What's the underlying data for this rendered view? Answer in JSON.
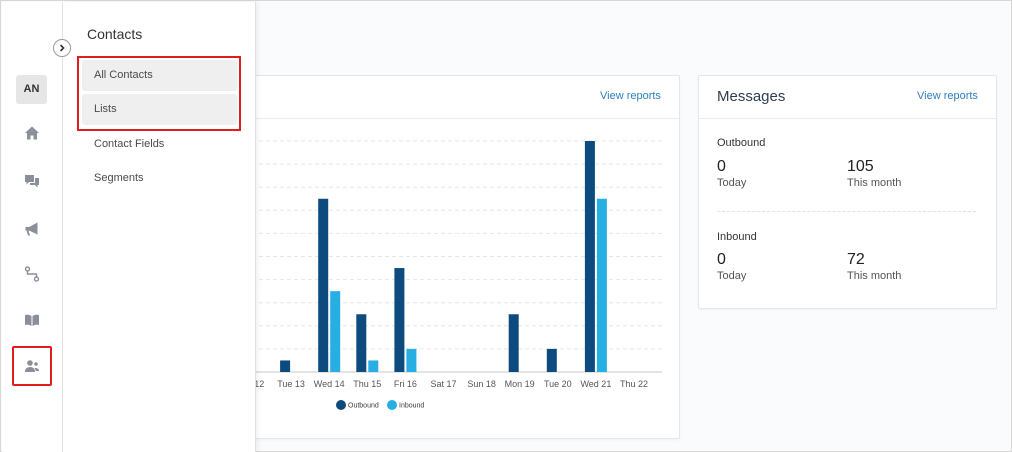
{
  "rail": {
    "avatar_initials": "AN",
    "icons": [
      "home-icon",
      "chat-icon",
      "megaphone-icon",
      "flow-icon",
      "book-icon",
      "contacts-icon"
    ]
  },
  "flyout": {
    "title": "Contacts",
    "items": [
      {
        "label": "All Contacts"
      },
      {
        "label": "Lists"
      },
      {
        "label": "Contact Fields"
      },
      {
        "label": "Segments"
      }
    ]
  },
  "chart_card": {
    "view_reports": "View reports"
  },
  "messages_card": {
    "title": "Messages",
    "view_reports": "View reports",
    "outbound": {
      "label": "Outbound",
      "today_value": "0",
      "today_label": "Today",
      "month_value": "105",
      "month_label": "This month"
    },
    "inbound": {
      "label": "Inbound",
      "today_value": "0",
      "today_label": "Today",
      "month_value": "72",
      "month_label": "This month"
    }
  },
  "colors": {
    "outbound": "#0d4a7e",
    "inbound": "#27aee3",
    "highlight": "#e01e1e",
    "link": "#2f7fc1"
  },
  "chart_data": {
    "type": "bar",
    "categories": [
      "Mon 12",
      "Tue 13",
      "Wed 14",
      "Thu 15",
      "Fri 16",
      "Sat 17",
      "Sun 18",
      "Mon 19",
      "Tue 20",
      "Wed 21",
      "Thu 22"
    ],
    "visible_tick_labels": [
      "on 12",
      "Tue 13",
      "Wed 14",
      "Thu 15",
      "Fri 16",
      "Sat 17",
      "Sun 18",
      "Mon 19",
      "Tue 20",
      "Wed 21",
      "Thu 22"
    ],
    "series": [
      {
        "name": "Outbound",
        "values": [
          2,
          1,
          15,
          5,
          9,
          0,
          0,
          5,
          2,
          20,
          0
        ]
      },
      {
        "name": "Inbound",
        "values": [
          0,
          0,
          7,
          1,
          2,
          0,
          0,
          0,
          0,
          15,
          0
        ]
      }
    ],
    "ylim": [
      0,
      20
    ],
    "grid": true,
    "legend": "bottom"
  }
}
